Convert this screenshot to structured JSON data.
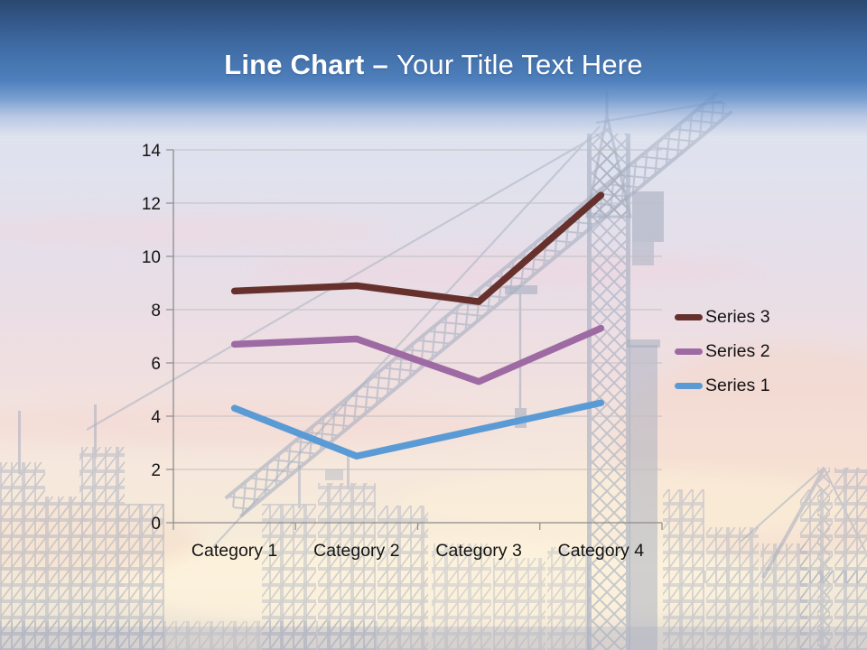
{
  "slide_title": {
    "primary": "Line Chart",
    "dash": "–",
    "secondary": "Your Title Text Here"
  },
  "chart_data": {
    "type": "line",
    "stacking": "stacked",
    "title": "",
    "categories": [
      "Category 1",
      "Category 2",
      "Category 3",
      "Category 4"
    ],
    "series": [
      {
        "name": "Series 1",
        "color": "#5b9bd5",
        "values": [
          4.3,
          2.5,
          3.5,
          4.5
        ],
        "plotted_values": [
          4.3,
          2.5,
          3.5,
          4.5
        ]
      },
      {
        "name": "Series 2",
        "color": "#9e6aa3",
        "values": [
          2.4,
          4.4,
          1.8,
          2.8
        ],
        "plotted_values": [
          6.7,
          6.9,
          5.3,
          7.3
        ]
      },
      {
        "name": "Series 3",
        "color": "#66302c",
        "values": [
          2.0,
          2.0,
          3.0,
          5.0
        ],
        "plotted_values": [
          8.7,
          8.9,
          8.3,
          12.3
        ]
      }
    ],
    "y_axis": {
      "min": 0,
      "max": 14,
      "step": 2,
      "tick_labels": [
        "0",
        "2",
        "4",
        "6",
        "8",
        "10",
        "12",
        "14"
      ]
    },
    "x_axis": {
      "tick_labels": [
        "Category 1",
        "Category 2",
        "Category 3",
        "Category 4"
      ]
    },
    "legend": {
      "position": "right",
      "entries": [
        "Series 3",
        "Series 2",
        "Series 1"
      ]
    },
    "grid": true,
    "colors": {
      "banner_top": "#2a4870",
      "banner_mid": "#4f80bd",
      "gridline": "#bfbfc3",
      "axis": "#8c8c8c",
      "label_text": "#141414",
      "title_text": "#ffffff"
    }
  }
}
